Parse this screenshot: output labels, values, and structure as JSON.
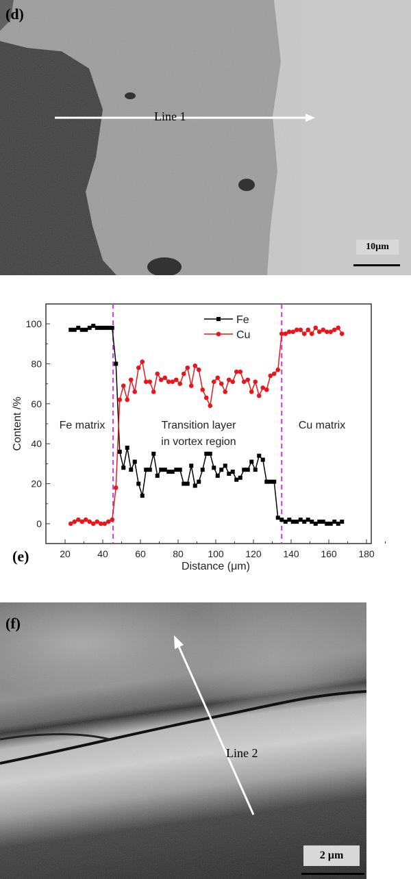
{
  "panel_d": {
    "label": "(d)",
    "line_label": "Line 1",
    "scale": "10µm"
  },
  "panel_e": {
    "label": "(e)"
  },
  "panel_f": {
    "label": "(f)",
    "line_label": "Line 2",
    "scale": "2 µm"
  },
  "chart_data": {
    "type": "line",
    "title": "",
    "xlabel": "Distance (μm)",
    "ylabel": "Content /%",
    "xlim": [
      10,
      180
    ],
    "ylim": [
      -10,
      110
    ],
    "xticks": [
      20,
      40,
      60,
      80,
      100,
      120,
      140,
      160,
      180
    ],
    "yticks": [
      0,
      20,
      40,
      60,
      80,
      100
    ],
    "legend": "top-center",
    "grid": false,
    "boundaries": [
      45.5,
      135
    ],
    "annotations": [
      "Fe matrix",
      "Transition layer",
      "in vortex region",
      "Cu matrix"
    ],
    "x_start": 23,
    "x_step": 2,
    "series": [
      {
        "name": "Fe",
        "color": "#000000",
        "marker": "square",
        "values": [
          97,
          97,
          98,
          97,
          97,
          98,
          99,
          98,
          98,
          98,
          98,
          98,
          80,
          36,
          28,
          38,
          27,
          31,
          20,
          14,
          27,
          27,
          35,
          24,
          27,
          27,
          26,
          26,
          27,
          27,
          20,
          20,
          29,
          19,
          21,
          27,
          35,
          35,
          28,
          24,
          27,
          29,
          25,
          26,
          22,
          23,
          27,
          27,
          31,
          27,
          34,
          32,
          21,
          21,
          21,
          3,
          2,
          1,
          2,
          1,
          1,
          2,
          1,
          2,
          1,
          0,
          1,
          1,
          0,
          0,
          1,
          0,
          1
        ]
      },
      {
        "name": "Cu",
        "color": "#e8161b",
        "marker": "circle",
        "values": [
          0,
          1,
          2,
          1,
          2,
          1,
          0,
          1,
          0,
          0,
          1,
          2,
          18,
          62,
          69,
          62,
          72,
          66,
          78,
          81,
          71,
          71,
          66,
          75,
          72,
          73,
          71,
          71,
          72,
          70,
          75,
          78,
          69,
          79,
          77,
          67,
          63,
          59,
          71,
          73,
          70,
          66,
          72,
          71,
          76,
          76,
          71,
          72,
          66,
          71,
          64,
          68,
          67,
          74,
          75,
          77,
          95,
          95,
          96,
          96,
          97,
          97,
          95,
          97,
          95,
          98,
          96,
          97,
          96,
          96,
          97,
          98,
          95
        ]
      }
    ]
  }
}
